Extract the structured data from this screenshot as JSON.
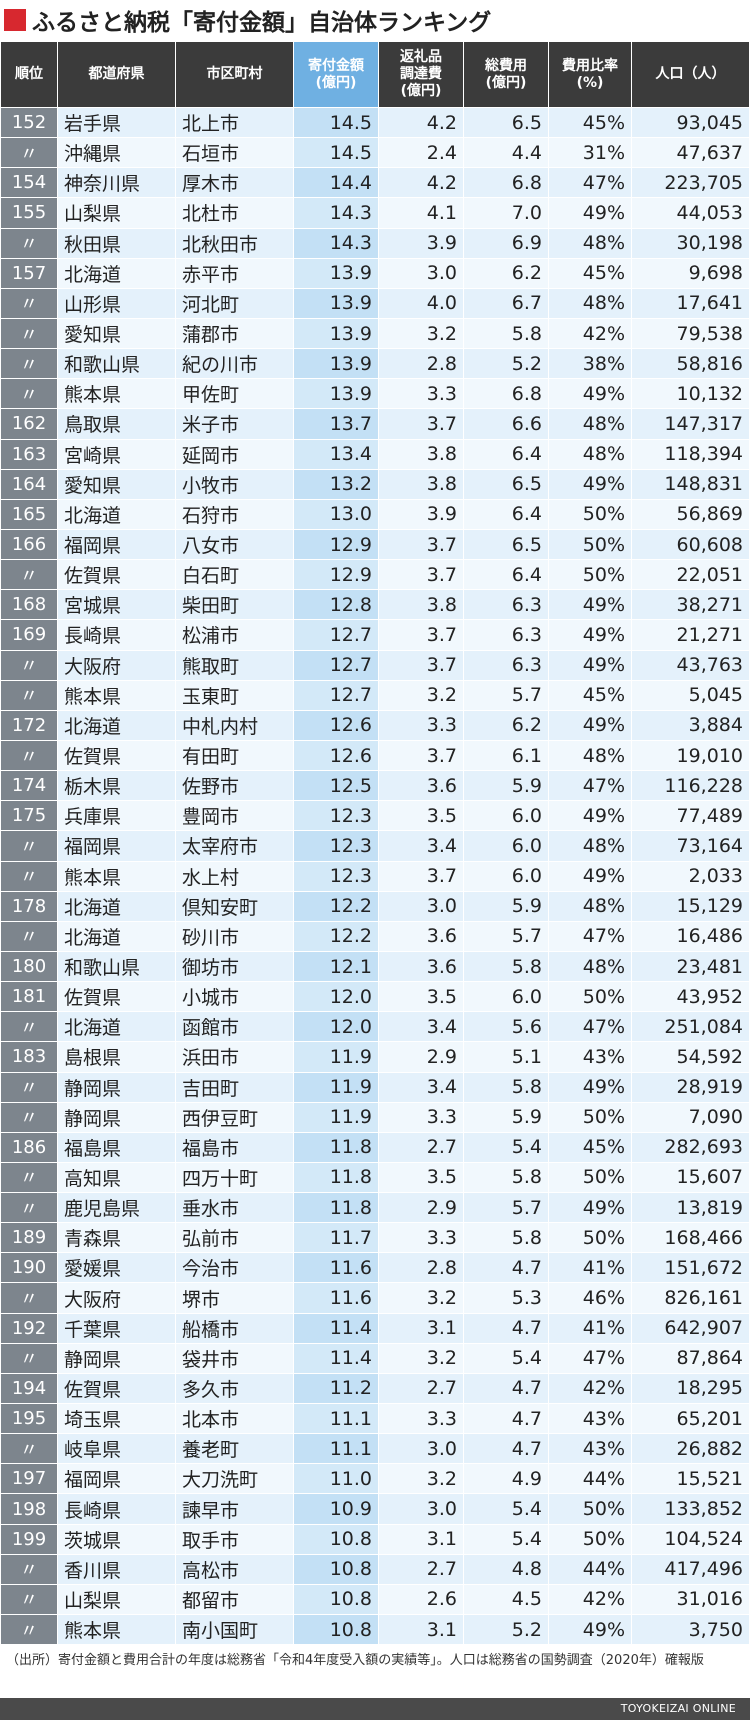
{
  "header": {
    "title": "ふるさと納税「寄付金額」自治体ランキング"
  },
  "table": {
    "header": [
      [
        "順位"
      ],
      [
        "都道府県"
      ],
      [
        "市区町村"
      ],
      [
        "寄付金額",
        "(億円)"
      ],
      [
        "返礼品",
        "調達費",
        "(億円)"
      ],
      [
        "総費用",
        "(億円)"
      ],
      [
        "費用比率",
        "(%)"
      ],
      [
        "人口（人）"
      ]
    ],
    "rows": [
      [
        "152",
        "岩手県",
        "北上市",
        "14.5",
        "4.2",
        "6.5",
        "45%",
        "93,045"
      ],
      [
        "〃",
        "沖縄県",
        "石垣市",
        "14.5",
        "2.4",
        "4.4",
        "31%",
        "47,637"
      ],
      [
        "154",
        "神奈川県",
        "厚木市",
        "14.4",
        "4.2",
        "6.8",
        "47%",
        "223,705"
      ],
      [
        "155",
        "山梨県",
        "北杜市",
        "14.3",
        "4.1",
        "7.0",
        "49%",
        "44,053"
      ],
      [
        "〃",
        "秋田県",
        "北秋田市",
        "14.3",
        "3.9",
        "6.9",
        "48%",
        "30,198"
      ],
      [
        "157",
        "北海道",
        "赤平市",
        "13.9",
        "3.0",
        "6.2",
        "45%",
        "9,698"
      ],
      [
        "〃",
        "山形県",
        "河北町",
        "13.9",
        "4.0",
        "6.7",
        "48%",
        "17,641"
      ],
      [
        "〃",
        "愛知県",
        "蒲郡市",
        "13.9",
        "3.2",
        "5.8",
        "42%",
        "79,538"
      ],
      [
        "〃",
        "和歌山県",
        "紀の川市",
        "13.9",
        "2.8",
        "5.2",
        "38%",
        "58,816"
      ],
      [
        "〃",
        "熊本県",
        "甲佐町",
        "13.9",
        "3.3",
        "6.8",
        "49%",
        "10,132"
      ],
      [
        "162",
        "鳥取県",
        "米子市",
        "13.7",
        "3.7",
        "6.6",
        "48%",
        "147,317"
      ],
      [
        "163",
        "宮崎県",
        "延岡市",
        "13.4",
        "3.8",
        "6.4",
        "48%",
        "118,394"
      ],
      [
        "164",
        "愛知県",
        "小牧市",
        "13.2",
        "3.8",
        "6.5",
        "49%",
        "148,831"
      ],
      [
        "165",
        "北海道",
        "石狩市",
        "13.0",
        "3.9",
        "6.4",
        "50%",
        "56,869"
      ],
      [
        "166",
        "福岡県",
        "八女市",
        "12.9",
        "3.7",
        "6.5",
        "50%",
        "60,608"
      ],
      [
        "〃",
        "佐賀県",
        "白石町",
        "12.9",
        "3.7",
        "6.4",
        "50%",
        "22,051"
      ],
      [
        "168",
        "宮城県",
        "柴田町",
        "12.8",
        "3.8",
        "6.3",
        "49%",
        "38,271"
      ],
      [
        "169",
        "長崎県",
        "松浦市",
        "12.7",
        "3.7",
        "6.3",
        "49%",
        "21,271"
      ],
      [
        "〃",
        "大阪府",
        "熊取町",
        "12.7",
        "3.7",
        "6.3",
        "49%",
        "43,763"
      ],
      [
        "〃",
        "熊本県",
        "玉東町",
        "12.7",
        "3.2",
        "5.7",
        "45%",
        "5,045"
      ],
      [
        "172",
        "北海道",
        "中札内村",
        "12.6",
        "3.3",
        "6.2",
        "49%",
        "3,884"
      ],
      [
        "〃",
        "佐賀県",
        "有田町",
        "12.6",
        "3.7",
        "6.1",
        "48%",
        "19,010"
      ],
      [
        "174",
        "栃木県",
        "佐野市",
        "12.5",
        "3.6",
        "5.9",
        "47%",
        "116,228"
      ],
      [
        "175",
        "兵庫県",
        "豊岡市",
        "12.3",
        "3.5",
        "6.0",
        "49%",
        "77,489"
      ],
      [
        "〃",
        "福岡県",
        "太宰府市",
        "12.3",
        "3.4",
        "6.0",
        "48%",
        "73,164"
      ],
      [
        "〃",
        "熊本県",
        "水上村",
        "12.3",
        "3.7",
        "6.0",
        "49%",
        "2,033"
      ],
      [
        "178",
        "北海道",
        "倶知安町",
        "12.2",
        "3.0",
        "5.9",
        "48%",
        "15,129"
      ],
      [
        "〃",
        "北海道",
        "砂川市",
        "12.2",
        "3.6",
        "5.7",
        "47%",
        "16,486"
      ],
      [
        "180",
        "和歌山県",
        "御坊市",
        "12.1",
        "3.6",
        "5.8",
        "48%",
        "23,481"
      ],
      [
        "181",
        "佐賀県",
        "小城市",
        "12.0",
        "3.5",
        "6.0",
        "50%",
        "43,952"
      ],
      [
        "〃",
        "北海道",
        "函館市",
        "12.0",
        "3.4",
        "5.6",
        "47%",
        "251,084"
      ],
      [
        "183",
        "島根県",
        "浜田市",
        "11.9",
        "2.9",
        "5.1",
        "43%",
        "54,592"
      ],
      [
        "〃",
        "静岡県",
        "吉田町",
        "11.9",
        "3.4",
        "5.8",
        "49%",
        "28,919"
      ],
      [
        "〃",
        "静岡県",
        "西伊豆町",
        "11.9",
        "3.3",
        "5.9",
        "50%",
        "7,090"
      ],
      [
        "186",
        "福島県",
        "福島市",
        "11.8",
        "2.7",
        "5.4",
        "45%",
        "282,693"
      ],
      [
        "〃",
        "高知県",
        "四万十町",
        "11.8",
        "3.5",
        "5.8",
        "50%",
        "15,607"
      ],
      [
        "〃",
        "鹿児島県",
        "垂水市",
        "11.8",
        "2.9",
        "5.7",
        "49%",
        "13,819"
      ],
      [
        "189",
        "青森県",
        "弘前市",
        "11.7",
        "3.3",
        "5.8",
        "50%",
        "168,466"
      ],
      [
        "190",
        "愛媛県",
        "今治市",
        "11.6",
        "2.8",
        "4.7",
        "41%",
        "151,672"
      ],
      [
        "〃",
        "大阪府",
        "堺市",
        "11.6",
        "3.2",
        "5.3",
        "46%",
        "826,161"
      ],
      [
        "192",
        "千葉県",
        "船橋市",
        "11.4",
        "3.1",
        "4.7",
        "41%",
        "642,907"
      ],
      [
        "〃",
        "静岡県",
        "袋井市",
        "11.4",
        "3.2",
        "5.4",
        "47%",
        "87,864"
      ],
      [
        "194",
        "佐賀県",
        "多久市",
        "11.2",
        "2.7",
        "4.7",
        "42%",
        "18,295"
      ],
      [
        "195",
        "埼玉県",
        "北本市",
        "11.1",
        "3.3",
        "4.7",
        "43%",
        "65,201"
      ],
      [
        "〃",
        "岐阜県",
        "養老町",
        "11.1",
        "3.0",
        "4.7",
        "43%",
        "26,882"
      ],
      [
        "197",
        "福岡県",
        "大刀洗町",
        "11.0",
        "3.2",
        "4.9",
        "44%",
        "15,521"
      ],
      [
        "198",
        "長崎県",
        "諫早市",
        "10.9",
        "3.0",
        "5.4",
        "50%",
        "133,852"
      ],
      [
        "199",
        "茨城県",
        "取手市",
        "10.8",
        "3.1",
        "5.4",
        "50%",
        "104,524"
      ],
      [
        "〃",
        "香川県",
        "高松市",
        "10.8",
        "2.7",
        "4.8",
        "44%",
        "417,496"
      ],
      [
        "〃",
        "山梨県",
        "都留市",
        "10.8",
        "2.6",
        "4.5",
        "42%",
        "31,016"
      ],
      [
        "〃",
        "熊本県",
        "南小国町",
        "10.8",
        "3.1",
        "5.2",
        "49%",
        "3,750"
      ]
    ]
  },
  "footer": {
    "note": "（出所）寄付金額と費用合計の年度は総務省「令和4年度受入額の実績等」。人口は総務省の国勢調査（2020年）確報版",
    "brand": "TOYOKEIZAI ONLINE"
  }
}
